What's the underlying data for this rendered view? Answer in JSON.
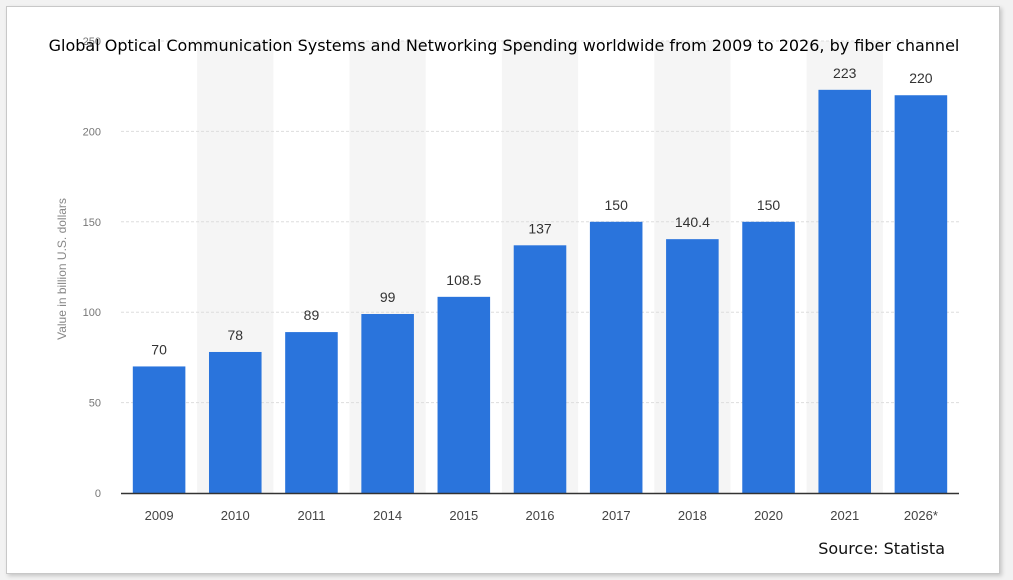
{
  "chart_data": {
    "type": "bar",
    "title": "Global Optical Communication Systems and Networking Spending worldwide from 2009 to 2026, by fiber channel",
    "xlabel": "",
    "ylabel": "Value in billion U.S. dollars",
    "categories": [
      "2009",
      "2010",
      "2011",
      "2014",
      "2015",
      "2016",
      "2017",
      "2018",
      "2020",
      "2021",
      "2026*"
    ],
    "values": [
      70,
      78,
      89,
      99,
      108.5,
      137,
      150,
      140.4,
      150,
      223,
      220
    ],
    "data_labels": [
      "70",
      "78",
      "89",
      "99",
      "108.5",
      "137",
      "150",
      "140.4",
      "150",
      "223",
      "220"
    ],
    "ylim": [
      0,
      250
    ],
    "yticks": [
      0,
      50,
      100,
      150,
      200,
      250
    ],
    "grid": true,
    "bar_color": "#2a74dc",
    "alt_band_color": "#f5f5f5",
    "source": "Source: Statista"
  }
}
